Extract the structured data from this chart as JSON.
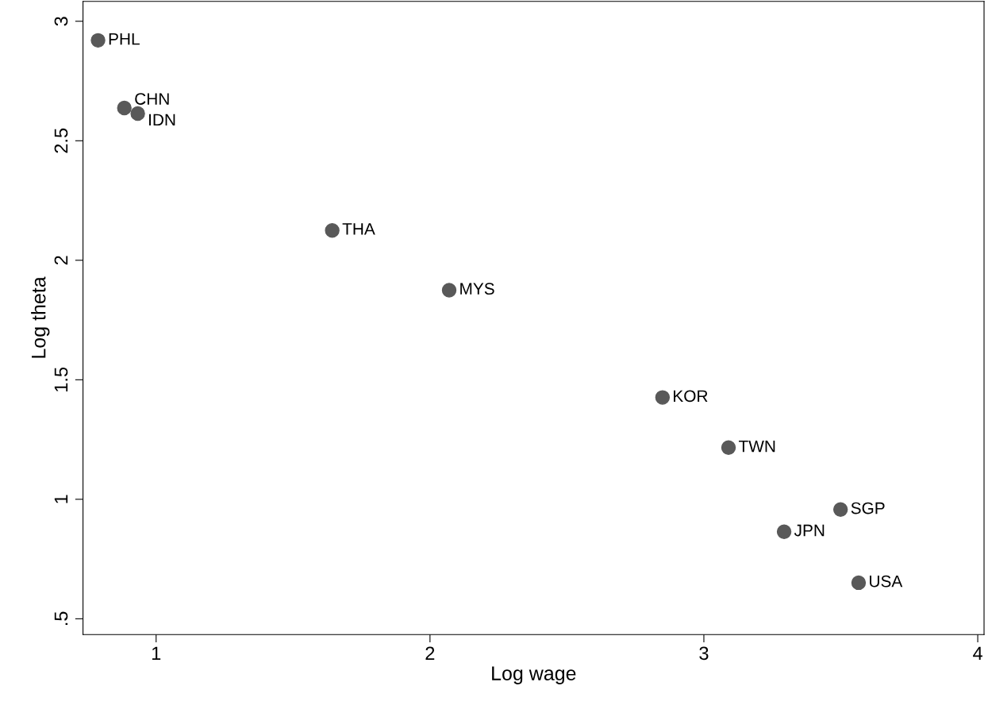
{
  "chart_data": {
    "type": "scatter",
    "xlabel": "Log wage",
    "ylabel": "Log theta",
    "x": [
      0.788,
      0.884,
      0.933,
      1.643,
      2.07,
      2.849,
      3.09,
      3.499,
      3.293,
      3.565
    ],
    "values": [
      2.92,
      2.637,
      2.614,
      2.125,
      1.875,
      1.426,
      1.216,
      0.957,
      0.864,
      0.651
    ],
    "color": "#595959",
    "marker": "circle",
    "grid": false,
    "legend": false,
    "annotations": [
      {
        "text": "PHL",
        "x": 0.788,
        "y": 2.92
      },
      {
        "text": "CHN",
        "x": 0.884,
        "y": 2.637
      },
      {
        "text": "IDN",
        "x": 0.933,
        "y": 2.614
      },
      {
        "text": "THA",
        "x": 1.643,
        "y": 2.125
      },
      {
        "text": "MYS",
        "x": 2.07,
        "y": 1.875
      },
      {
        "text": "KOR",
        "x": 2.849,
        "y": 1.426
      },
      {
        "text": "TWN",
        "x": 3.09,
        "y": 1.216
      },
      {
        "text": "SGP",
        "x": 3.499,
        "y": 0.957
      },
      {
        "text": "JPN",
        "x": 3.293,
        "y": 0.864
      },
      {
        "text": "USA",
        "x": 3.565,
        "y": 0.651
      }
    ],
    "xlim": [
      0.733,
      4.023
    ],
    "ylim": [
      0.434,
      3.083
    ],
    "xticks": [
      1,
      2,
      3,
      4
    ],
    "yticks": [
      {
        "value": 0.5,
        "label": ".5"
      },
      1,
      1.5,
      2,
      2.5,
      3
    ]
  }
}
